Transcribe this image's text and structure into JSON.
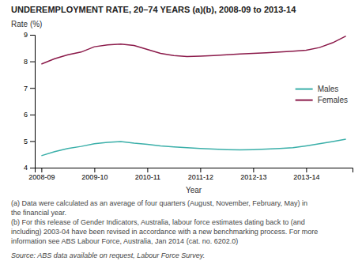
{
  "chart_data": {
    "type": "line",
    "title": "UNDEREMPLOYMENT RATE, 20–74 YEARS (a)(b), 2008-09 to 2013-14",
    "ylabel": "Rate (%)",
    "xlabel": "Year",
    "categories": [
      "2008-09",
      null,
      null,
      null,
      "2009-10",
      null,
      null,
      null,
      "2010-11",
      null,
      null,
      null,
      "2011-12",
      null,
      null,
      null,
      "2012-13",
      null,
      null,
      null,
      "2013-14",
      null,
      null,
      null
    ],
    "series": [
      {
        "name": "Males",
        "color": "#3aafa9",
        "values": [
          4.45,
          4.6,
          4.72,
          4.8,
          4.9,
          4.95,
          4.98,
          4.92,
          4.88,
          4.82,
          4.78,
          4.75,
          4.72,
          4.7,
          4.68,
          4.67,
          4.68,
          4.7,
          4.72,
          4.75,
          4.82,
          4.9,
          4.98,
          5.07
        ]
      },
      {
        "name": "Females",
        "color": "#8b1a4a",
        "values": [
          7.9,
          8.1,
          8.25,
          8.35,
          8.55,
          8.62,
          8.65,
          8.6,
          8.45,
          8.3,
          8.22,
          8.18,
          8.2,
          8.22,
          8.25,
          8.28,
          8.3,
          8.32,
          8.35,
          8.38,
          8.42,
          8.52,
          8.7,
          8.95
        ]
      }
    ],
    "ylim": [
      4,
      9
    ],
    "yticks": [
      4,
      5,
      6,
      7,
      8,
      9
    ],
    "legend": "right",
    "annotations": [
      "(a) Data were calculated as an average of four quarters (August, November, February, May) in",
      "the financial year.",
      "(b) For this release of Gender Indicators, Australia, labour force estimates dating back to (and",
      "including) 2003-04 have been revised in accordance with a new benchmarking process. For more",
      "information see ABS Labour Force, Australia, Jan 2014 (cat. no. 6202.0)",
      "Source: ABS data available on request, Labour Force Survey."
    ]
  }
}
